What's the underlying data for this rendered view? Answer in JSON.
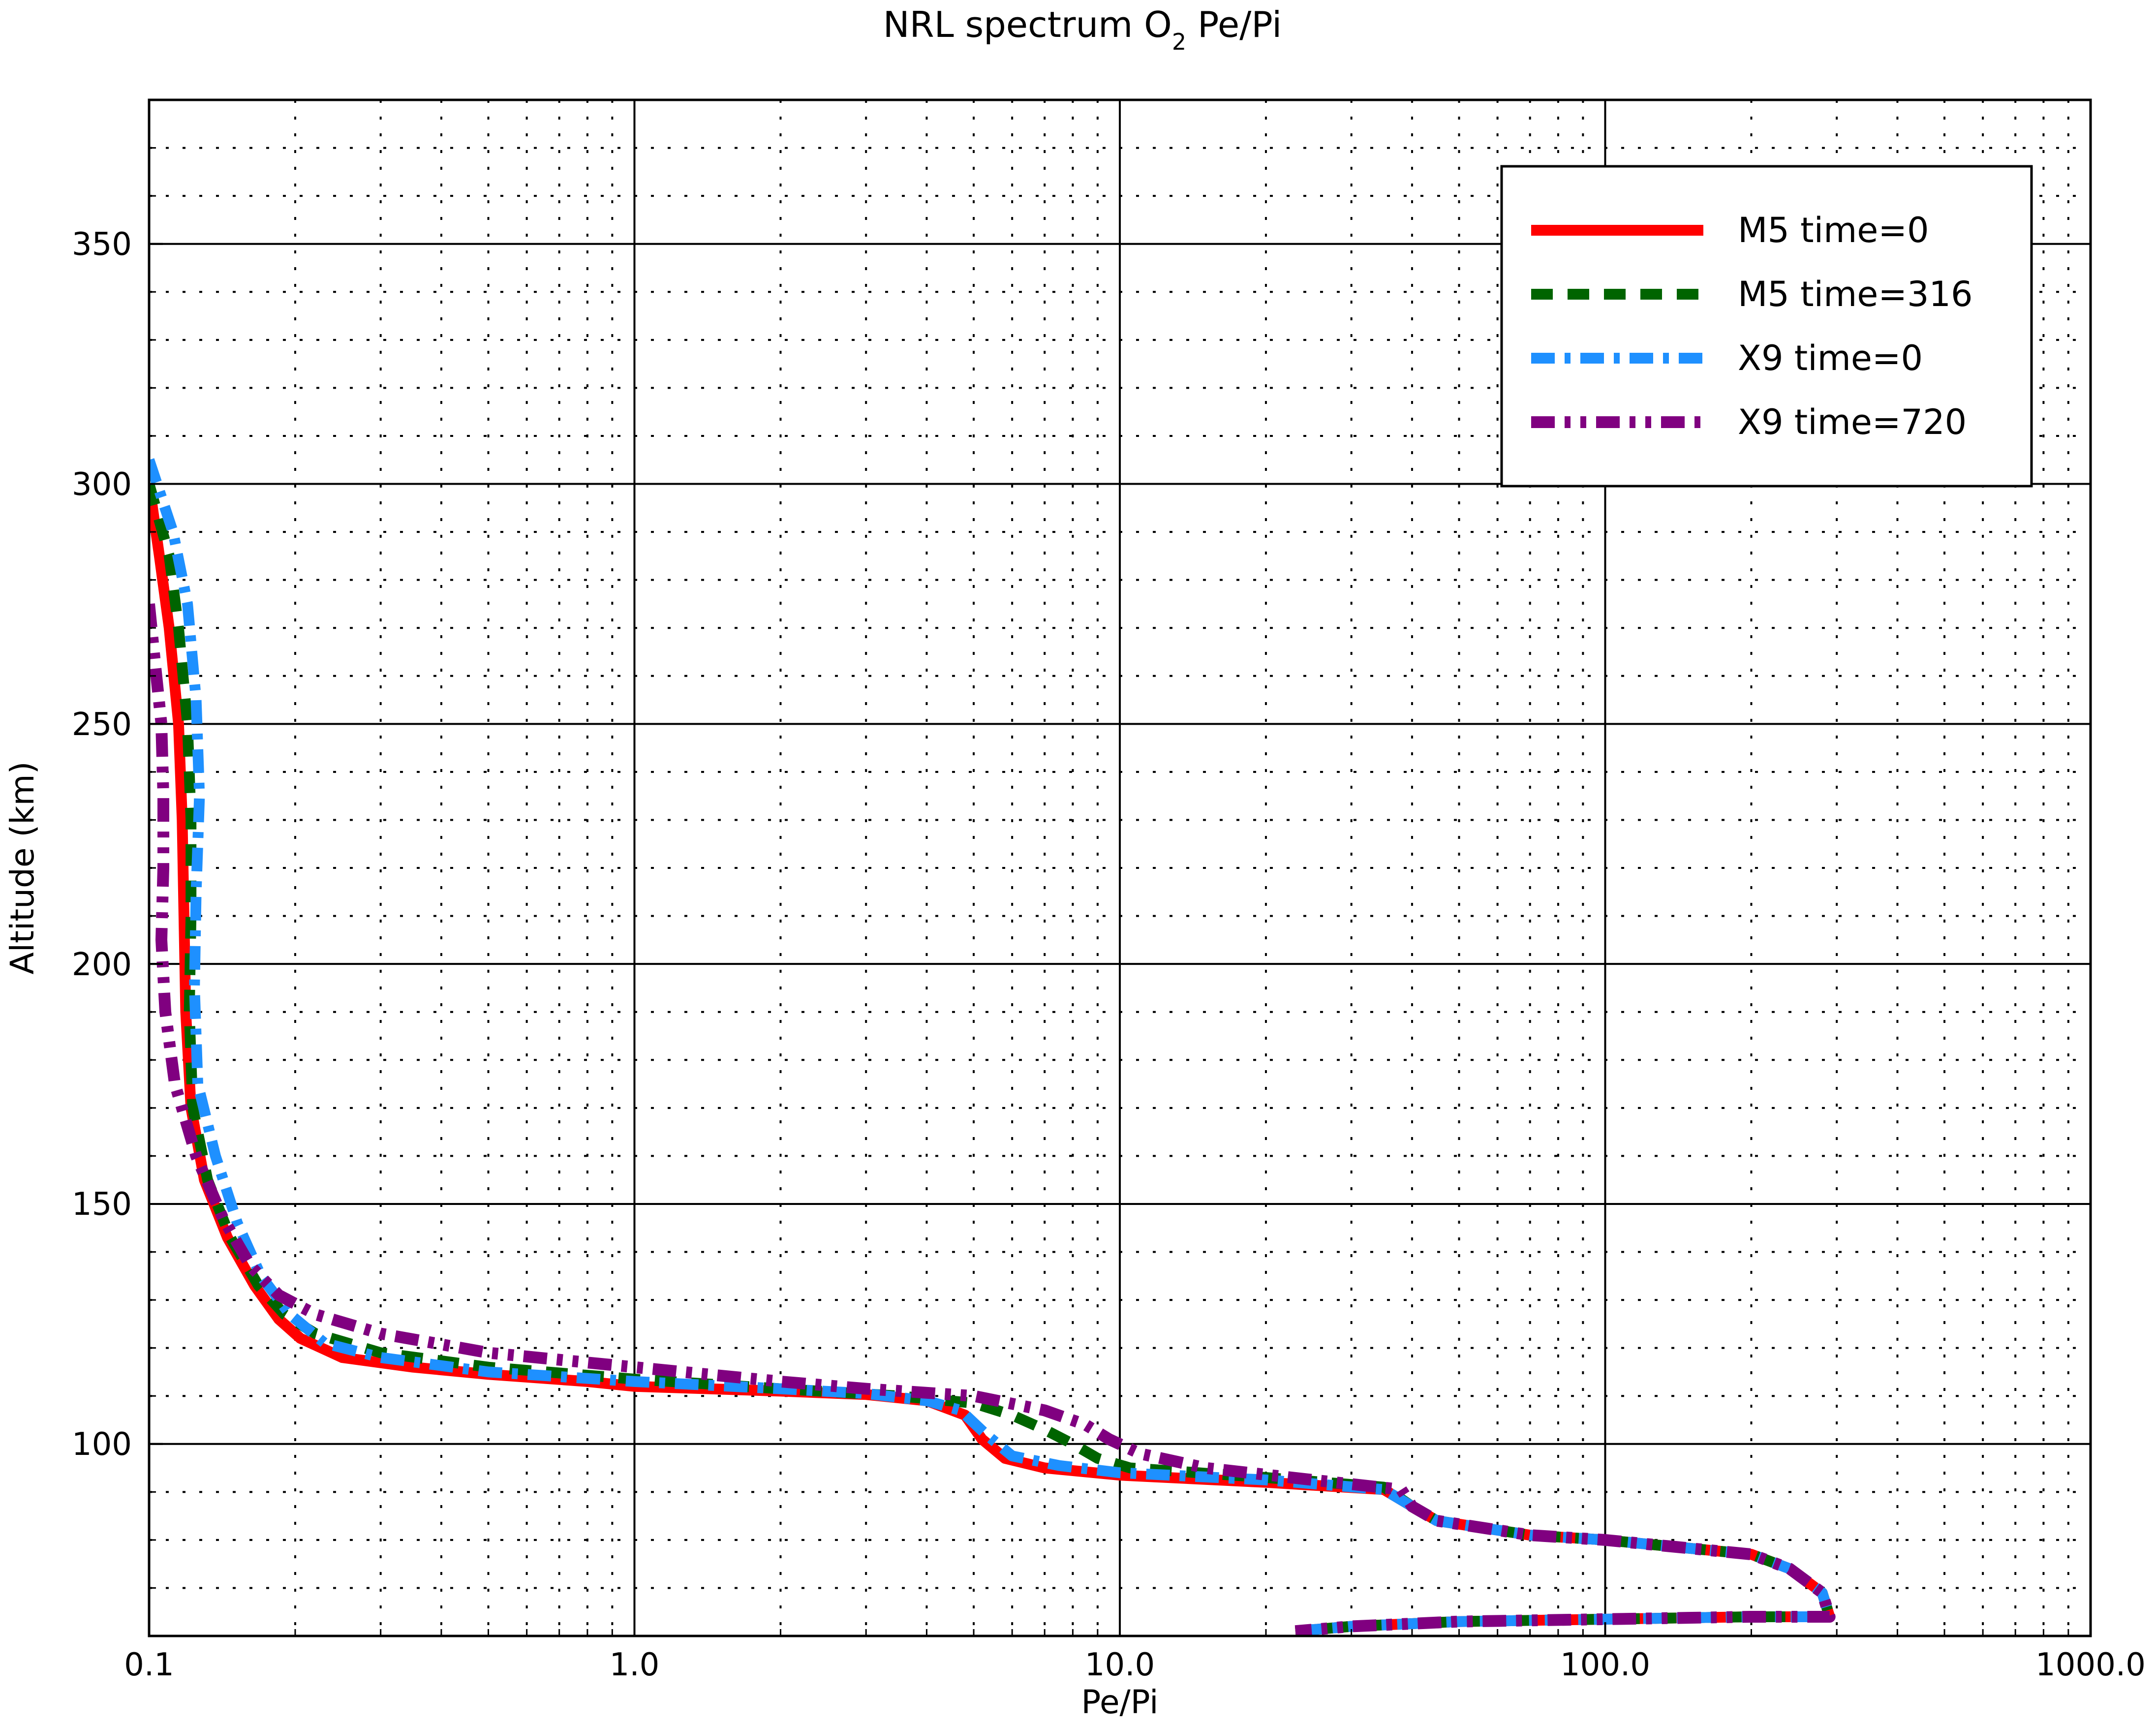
{
  "chart_data": {
    "type": "line",
    "title": "NRL spectrum O",
    "title_subscript": "2",
    "title_suffix": " Pe/Pi",
    "xlabel": "Pe/Pi",
    "ylabel": "Altitude (km)",
    "xscale": "log",
    "xlim": [
      0.1,
      1000.0
    ],
    "ylim": [
      60,
      380
    ],
    "grid": true,
    "legend_position": "top-right",
    "x_tick_labels": [
      "0.1",
      "1.0",
      "10.0",
      "100.0",
      "1000.0"
    ],
    "y_tick_labels": [
      "100",
      "150",
      "200",
      "250",
      "300",
      "350"
    ],
    "series": [
      {
        "name": "M5 time=0",
        "color": "#ff0000",
        "style": "solid",
        "points": [
          [
            0.1,
            300
          ],
          [
            0.105,
            285
          ],
          [
            0.11,
            270
          ],
          [
            0.115,
            250
          ],
          [
            0.117,
            230
          ],
          [
            0.118,
            210
          ],
          [
            0.119,
            190
          ],
          [
            0.122,
            170
          ],
          [
            0.13,
            155
          ],
          [
            0.145,
            143
          ],
          [
            0.165,
            133
          ],
          [
            0.185,
            126
          ],
          [
            0.205,
            122
          ],
          [
            0.25,
            118
          ],
          [
            0.35,
            116
          ],
          [
            0.5,
            114.5
          ],
          [
            0.8,
            113
          ],
          [
            1.0,
            112
          ],
          [
            2.0,
            111
          ],
          [
            3.0,
            110.3
          ],
          [
            4.0,
            109
          ],
          [
            4.8,
            106
          ],
          [
            5.2,
            101
          ],
          [
            5.8,
            97
          ],
          [
            7.0,
            95
          ],
          [
            10.0,
            93.5
          ],
          [
            20.0,
            92
          ],
          [
            35.0,
            90.5
          ],
          [
            40.0,
            87
          ],
          [
            45.0,
            84
          ],
          [
            70.0,
            81
          ],
          [
            100.0,
            80
          ],
          [
            200.0,
            77
          ],
          [
            240.0,
            74
          ],
          [
            280.0,
            69
          ],
          [
            290.0,
            64
          ],
          [
            200.0,
            64
          ],
          [
            100.0,
            63.5
          ],
          [
            50.0,
            63
          ],
          [
            30.0,
            62
          ],
          [
            23.0,
            61
          ]
        ]
      },
      {
        "name": "M5 time=316",
        "color": "#006400",
        "style": "dashed",
        "points": [
          [
            0.1,
            300
          ],
          [
            0.11,
            285
          ],
          [
            0.115,
            270
          ],
          [
            0.12,
            250
          ],
          [
            0.122,
            230
          ],
          [
            0.122,
            210
          ],
          [
            0.121,
            190
          ],
          [
            0.123,
            170
          ],
          [
            0.132,
            155
          ],
          [
            0.147,
            143
          ],
          [
            0.168,
            133
          ],
          [
            0.19,
            127
          ],
          [
            0.22,
            123
          ],
          [
            0.3,
            119
          ],
          [
            0.5,
            116
          ],
          [
            1.0,
            113.5
          ],
          [
            2.0,
            111.5
          ],
          [
            3.5,
            110
          ],
          [
            5.0,
            108.5
          ],
          [
            6.0,
            106
          ],
          [
            7.0,
            103
          ],
          [
            8.0,
            100
          ],
          [
            9.0,
            97
          ],
          [
            10.5,
            95
          ],
          [
            20.0,
            93
          ],
          [
            35.0,
            91
          ],
          [
            40.0,
            87
          ],
          [
            45.0,
            84
          ],
          [
            70.0,
            81
          ],
          [
            100.0,
            80
          ],
          [
            200.0,
            77
          ],
          [
            240.0,
            74
          ],
          [
            280.0,
            69
          ],
          [
            290.0,
            64
          ],
          [
            200.0,
            64
          ],
          [
            100.0,
            63.5
          ],
          [
            50.0,
            63
          ],
          [
            30.0,
            62
          ],
          [
            23.0,
            61
          ]
        ]
      },
      {
        "name": "X9 time=0",
        "color": "#1e90ff",
        "style": "dashdot",
        "points": [
          [
            0.1,
            305
          ],
          [
            0.112,
            290
          ],
          [
            0.12,
            275
          ],
          [
            0.125,
            255
          ],
          [
            0.127,
            235
          ],
          [
            0.125,
            215
          ],
          [
            0.124,
            195
          ],
          [
            0.126,
            175
          ],
          [
            0.137,
            160
          ],
          [
            0.152,
            146
          ],
          [
            0.17,
            135
          ],
          [
            0.195,
            127
          ],
          [
            0.23,
            121
          ],
          [
            0.3,
            118
          ],
          [
            0.5,
            115
          ],
          [
            1.0,
            113
          ],
          [
            2.0,
            111.5
          ],
          [
            3.0,
            110.5
          ],
          [
            4.0,
            109
          ],
          [
            4.7,
            107
          ],
          [
            5.3,
            102
          ],
          [
            6.0,
            97.5
          ],
          [
            7.5,
            95.5
          ],
          [
            10.0,
            94
          ],
          [
            20.0,
            92.5
          ],
          [
            35.0,
            90.5
          ],
          [
            40.0,
            87
          ],
          [
            45.0,
            84
          ],
          [
            70.0,
            81
          ],
          [
            100.0,
            80
          ],
          [
            200.0,
            77
          ],
          [
            240.0,
            74
          ],
          [
            280.0,
            69
          ],
          [
            290.0,
            64
          ],
          [
            200.0,
            64
          ],
          [
            100.0,
            63.5
          ],
          [
            50.0,
            63
          ],
          [
            30.0,
            62
          ],
          [
            23.0,
            61
          ]
        ]
      },
      {
        "name": "X9 time=720",
        "color": "#800080",
        "style": "dashdotdot",
        "points": [
          [
            0.1,
            275
          ],
          [
            0.103,
            262
          ],
          [
            0.106,
            250
          ],
          [
            0.107,
            235
          ],
          [
            0.107,
            220
          ],
          [
            0.106,
            205
          ],
          [
            0.108,
            190
          ],
          [
            0.113,
            175
          ],
          [
            0.125,
            160
          ],
          [
            0.142,
            147
          ],
          [
            0.162,
            137
          ],
          [
            0.185,
            131
          ],
          [
            0.22,
            127
          ],
          [
            0.3,
            123
          ],
          [
            0.5,
            119
          ],
          [
            1.0,
            116
          ],
          [
            2.0,
            113
          ],
          [
            3.0,
            111.5
          ],
          [
            5.0,
            110
          ],
          [
            7.0,
            107
          ],
          [
            8.5,
            104
          ],
          [
            9.5,
            101
          ],
          [
            11.0,
            98
          ],
          [
            15.0,
            95
          ],
          [
            25.0,
            92.5
          ],
          [
            38.0,
            90.5
          ],
          [
            40.0,
            87
          ],
          [
            45.0,
            84
          ],
          [
            70.0,
            81
          ],
          [
            100.0,
            80
          ],
          [
            200.0,
            77
          ],
          [
            240.0,
            74
          ],
          [
            280.0,
            69
          ],
          [
            290.0,
            64
          ],
          [
            200.0,
            64
          ],
          [
            100.0,
            63.5
          ],
          [
            50.0,
            63
          ],
          [
            30.0,
            62
          ],
          [
            23.0,
            61
          ]
        ]
      }
    ]
  }
}
